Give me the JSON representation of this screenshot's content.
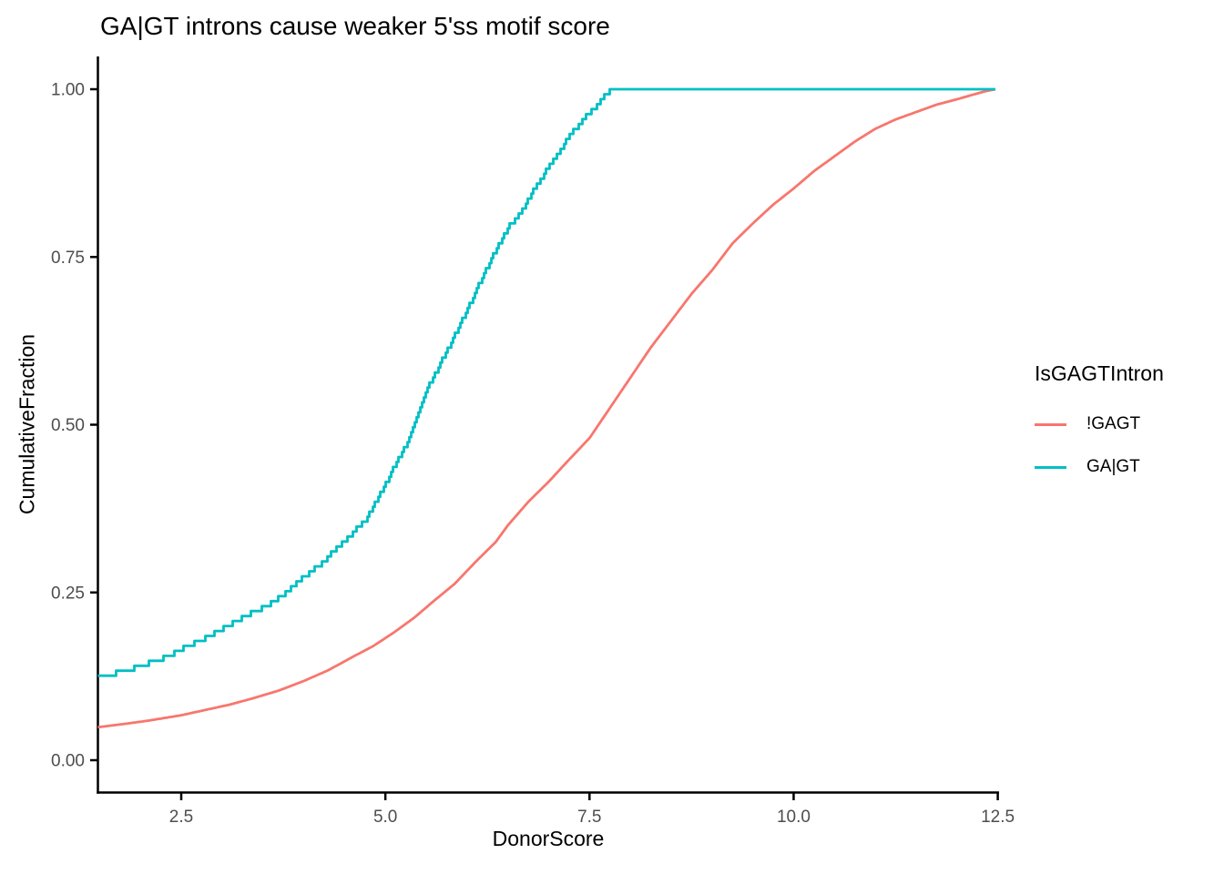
{
  "title": "GA|GT introns cause weaker 5'ss motif score",
  "colors": {
    "series_not_gagt": "#F8766D",
    "series_gagt": "#00BFC4",
    "axis": "#000000",
    "tick_label": "#4D4D4D",
    "background": "#FFFFFF"
  },
  "chart_data": {
    "type": "line",
    "subtype": "ecdf",
    "title": "GA|GT introns cause weaker 5'ss motif score",
    "xlabel": "DonorScore",
    "ylabel": "CumulativeFraction",
    "grid": false,
    "xlim": [
      1.47,
      12.52
    ],
    "ylim": [
      -0.05,
      1.05
    ],
    "x_ticks": [
      "2.5",
      "5.0",
      "7.5",
      "10.0",
      "12.5"
    ],
    "x_tick_values": [
      2.5,
      5.0,
      7.5,
      10.0,
      12.5
    ],
    "y_ticks": [
      "0.00",
      "0.25",
      "0.50",
      "0.75",
      "1.00"
    ],
    "y_tick_values": [
      0,
      0.25,
      0.5,
      0.75,
      1.0
    ],
    "legend": {
      "title": "IsGAGTIntron",
      "position": "right",
      "entries": [
        {
          "label": "!GAGT",
          "color": "#F8766D"
        },
        {
          "label": "GA|GT",
          "color": "#00BFC4"
        }
      ]
    },
    "series": [
      {
        "name": "!GAGT",
        "color": "#F8766D",
        "style": "smooth",
        "points": [
          [
            1.47,
            0.049
          ],
          [
            1.8,
            0.054
          ],
          [
            2.1,
            0.059
          ],
          [
            2.5,
            0.067
          ],
          [
            2.8,
            0.075
          ],
          [
            3.1,
            0.083
          ],
          [
            3.4,
            0.093
          ],
          [
            3.7,
            0.104
          ],
          [
            4.0,
            0.118
          ],
          [
            4.3,
            0.134
          ],
          [
            4.6,
            0.154
          ],
          [
            4.85,
            0.17
          ],
          [
            5.1,
            0.19
          ],
          [
            5.35,
            0.212
          ],
          [
            5.6,
            0.238
          ],
          [
            5.85,
            0.263
          ],
          [
            6.1,
            0.295
          ],
          [
            6.35,
            0.325
          ],
          [
            6.5,
            0.35
          ],
          [
            6.75,
            0.385
          ],
          [
            7.0,
            0.415
          ],
          [
            7.25,
            0.448
          ],
          [
            7.5,
            0.48
          ],
          [
            7.75,
            0.525
          ],
          [
            8.0,
            0.57
          ],
          [
            8.25,
            0.615
          ],
          [
            8.5,
            0.655
          ],
          [
            8.75,
            0.695
          ],
          [
            9.0,
            0.73
          ],
          [
            9.25,
            0.77
          ],
          [
            9.5,
            0.8
          ],
          [
            9.75,
            0.828
          ],
          [
            10.0,
            0.852
          ],
          [
            10.25,
            0.878
          ],
          [
            10.5,
            0.9
          ],
          [
            10.75,
            0.922
          ],
          [
            11.0,
            0.941
          ],
          [
            11.25,
            0.955
          ],
          [
            11.5,
            0.966
          ],
          [
            11.75,
            0.977
          ],
          [
            12.0,
            0.985
          ],
          [
            12.2,
            0.992
          ],
          [
            12.35,
            0.997
          ],
          [
            12.47,
            1.0
          ]
        ]
      },
      {
        "name": "GA|GT",
        "color": "#00BFC4",
        "style": "step",
        "points": [
          [
            1.47,
            0.125
          ],
          [
            1.75,
            0.131
          ],
          [
            2.05,
            0.142
          ],
          [
            2.35,
            0.156
          ],
          [
            2.55,
            0.168
          ],
          [
            2.8,
            0.182
          ],
          [
            3.05,
            0.199
          ],
          [
            3.35,
            0.219
          ],
          [
            3.65,
            0.237
          ],
          [
            3.95,
            0.268
          ],
          [
            4.2,
            0.292
          ],
          [
            4.5,
            0.327
          ],
          [
            4.75,
            0.357
          ],
          [
            5.0,
            0.412
          ],
          [
            5.3,
            0.482
          ],
          [
            5.55,
            0.563
          ],
          [
            5.75,
            0.61
          ],
          [
            5.95,
            0.658
          ],
          [
            6.15,
            0.71
          ],
          [
            6.3,
            0.749
          ],
          [
            6.5,
            0.794
          ],
          [
            6.65,
            0.815
          ],
          [
            6.8,
            0.848
          ],
          [
            7.05,
            0.893
          ],
          [
            7.25,
            0.93
          ],
          [
            7.45,
            0.96
          ],
          [
            7.6,
            0.975
          ],
          [
            7.7,
            0.993
          ],
          [
            7.78,
            1.0
          ],
          [
            12.47,
            1.0
          ]
        ]
      }
    ]
  }
}
